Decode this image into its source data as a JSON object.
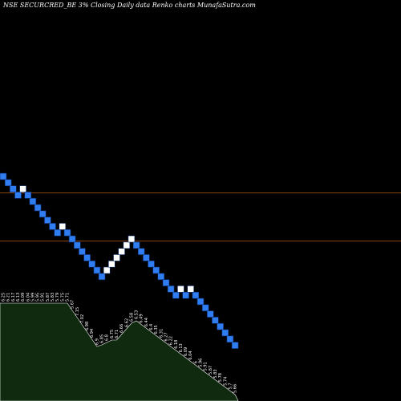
{
  "chart_data": {
    "type": "renko",
    "title": "NSE SECURCRED_BE 3% Closing Daily data  Renko  charts MunafaSutra.com",
    "colors": {
      "background": "#000000",
      "up_brick": "#ffffff",
      "down_brick": "#2f7df0",
      "brick_border": "#0a2a6a",
      "reference_line": "#8b4513",
      "volume_fill": "#0f2a0f",
      "volume_outline": "#ffffff"
    },
    "bricks": [
      {
        "dir": "down"
      },
      {
        "dir": "down"
      },
      {
        "dir": "down"
      },
      {
        "dir": "down"
      },
      {
        "dir": "up"
      },
      {
        "dir": "down"
      },
      {
        "dir": "down"
      },
      {
        "dir": "down"
      },
      {
        "dir": "down"
      },
      {
        "dir": "down"
      },
      {
        "dir": "down"
      },
      {
        "dir": "down"
      },
      {
        "dir": "up"
      },
      {
        "dir": "down"
      },
      {
        "dir": "down"
      },
      {
        "dir": "down"
      },
      {
        "dir": "down"
      },
      {
        "dir": "down"
      },
      {
        "dir": "down"
      },
      {
        "dir": "down"
      },
      {
        "dir": "down"
      },
      {
        "dir": "up"
      },
      {
        "dir": "up"
      },
      {
        "dir": "up"
      },
      {
        "dir": "up"
      },
      {
        "dir": "up"
      },
      {
        "dir": "up"
      },
      {
        "dir": "down"
      },
      {
        "dir": "down"
      },
      {
        "dir": "down"
      },
      {
        "dir": "down"
      },
      {
        "dir": "down"
      },
      {
        "dir": "down"
      },
      {
        "dir": "down"
      },
      {
        "dir": "down"
      },
      {
        "dir": "down"
      },
      {
        "dir": "up"
      },
      {
        "dir": "down"
      },
      {
        "dir": "up"
      },
      {
        "dir": "down"
      },
      {
        "dir": "down"
      },
      {
        "dir": "down"
      },
      {
        "dir": "down"
      },
      {
        "dir": "down"
      },
      {
        "dir": "down"
      },
      {
        "dir": "down"
      },
      {
        "dir": "down"
      },
      {
        "dir": "down"
      }
    ],
    "reference_lines": [
      {
        "value": 1
      },
      {
        "value": 2
      }
    ],
    "volume_labels": [
      "6.25",
      "6.21",
      "6.17",
      "6.13",
      "6.09",
      "6.04",
      "5.99",
      "5.95",
      "5.91",
      "5.87",
      "5.83",
      "5.79",
      "5.75",
      "5.71",
      "5.67",
      "7.15",
      "7.02",
      "6.98",
      "6.94",
      "6.9",
      "6.85",
      "6.8",
      "6.75",
      "6.71",
      "6.66",
      "6.62",
      "6.58",
      "6.53",
      "6.49",
      "6.44",
      "6.4",
      "6.35",
      "6.31",
      "6.27",
      "6.22",
      "6.18",
      "6.13",
      "6.09",
      "6.04",
      "6",
      "5.96",
      "5.91",
      "5.87",
      "5.83",
      "5.78",
      "5.74",
      "5.7",
      "5.66"
    ]
  }
}
